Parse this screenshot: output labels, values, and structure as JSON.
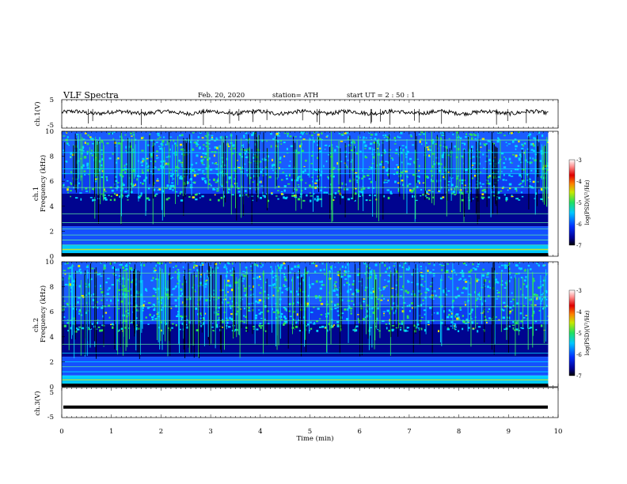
{
  "header": {
    "title": "VLF  Spectra",
    "date": "Feb. 20, 2020",
    "station": "station= ATH",
    "start": "start  UT  =   2  : 50 : 1"
  },
  "chart_data": [
    {
      "type": "line",
      "panel": "ch.1 waveform",
      "ylabel": "ch.1(V)",
      "ylim": [
        -5,
        5
      ],
      "yticks": [
        "5",
        "-5"
      ],
      "xlim": [
        0,
        10
      ],
      "note_level": 0.5
    },
    {
      "type": "heatmap",
      "panel": "ch.1 spectrogram",
      "ylabel": "ch.1\nFrequency (kHz)",
      "ylabel_line1": "ch.1",
      "ylabel_line2": "Frequency  (kHz)",
      "ylim": [
        0,
        10
      ],
      "yticks": [
        "10",
        "8",
        "6",
        "4",
        "2",
        "0"
      ],
      "xlim": [
        0,
        9.8
      ],
      "colorbar": {
        "label": "log(PSD)(V²/Hz)",
        "range": [
          -7,
          -3
        ],
        "ticks": [
          "-3",
          "-4",
          "-5",
          "-6",
          "-7"
        ]
      }
    },
    {
      "type": "heatmap",
      "panel": "ch.2 spectrogram",
      "ylabel_line1": "ch.2",
      "ylabel_line2": "Frequency  (kHz)",
      "ylim": [
        0,
        10
      ],
      "yticks": [
        "10",
        "8",
        "6",
        "4",
        "2",
        "0"
      ],
      "xlim": [
        0,
        9.8
      ],
      "colorbar": {
        "label": "log(PSD)(V²/Hz)",
        "range": [
          -7,
          -3
        ],
        "ticks": [
          "-3",
          "-4",
          "-5",
          "-6",
          "-7"
        ]
      }
    },
    {
      "type": "line",
      "panel": "ch.3 waveform",
      "ylabel": "ch.3(V)",
      "ylim": [
        -5,
        5
      ],
      "yticks": [
        "5",
        "-5"
      ],
      "constant_value": -1.5
    }
  ],
  "xaxis": {
    "label": "Time  (min)",
    "range": [
      0,
      10
    ],
    "ticks": [
      "0",
      "1",
      "2",
      "3",
      "4",
      "5",
      "6",
      "7",
      "8",
      "9",
      "10"
    ]
  },
  "colors": {
    "dark_blue": "#00008b",
    "blue": "#1e3cff",
    "cyan": "#00d8ff",
    "green": "#22e05a",
    "yellow": "#e8e800",
    "red": "#e00000"
  }
}
